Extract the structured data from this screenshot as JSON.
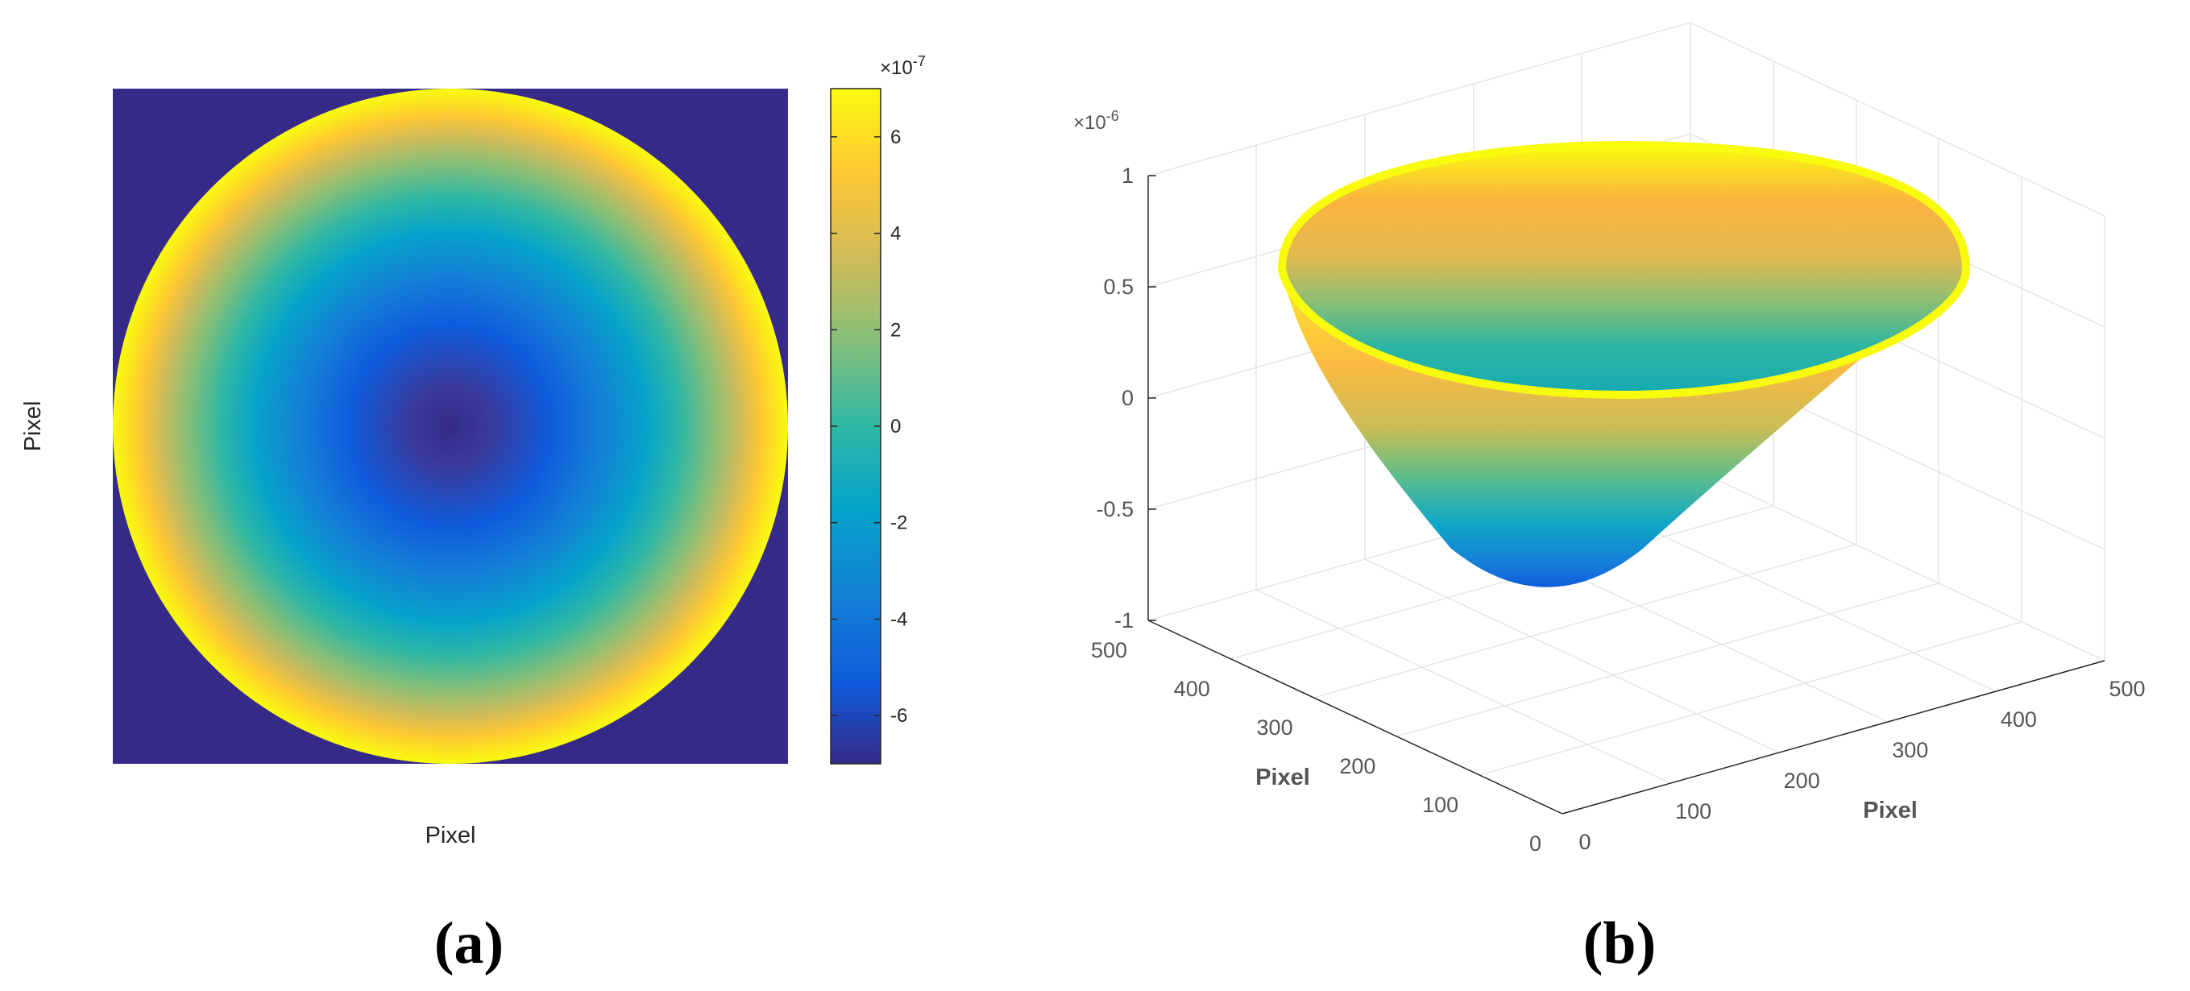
{
  "chart_data": [
    {
      "panel": "(a)",
      "type": "heatmap",
      "title": "",
      "xlabel": "Pixel",
      "ylabel": "Pixel",
      "description_values": {
        "shape": "circular aperture, radially symmetric paraboloid height map",
        "center_value": -7e-07,
        "rim_value": 7e-07,
        "outside_value": -7e-07
      },
      "colorbar": {
        "exponent_label": "×10",
        "exponent_power": "-7",
        "range": [
          -7,
          7
        ],
        "ticks": [
          "6",
          "4",
          "2",
          "0",
          "-2",
          "-4",
          "-6"
        ],
        "tick_values": [
          6,
          4,
          2,
          0,
          -2,
          -4,
          -6
        ]
      }
    },
    {
      "panel": "(b)",
      "type": "surface3d",
      "title": "",
      "xlabel": "Pixel",
      "ylabel": "Pixel",
      "zlabel": "",
      "z_exponent_label": "×10",
      "z_exponent_power": "-6",
      "zlim": [
        -1,
        1
      ],
      "z_ticks": [
        "1",
        "0.5",
        "0",
        "-0.5",
        "-1"
      ],
      "z_tick_values": [
        1,
        0.5,
        0,
        -0.5,
        -1
      ],
      "y_ticks": [
        "500",
        "400",
        "300",
        "200",
        "100",
        "0"
      ],
      "y_tick_values": [
        500,
        400,
        300,
        200,
        100,
        0
      ],
      "x_ticks": [
        "0",
        "100",
        "200",
        "300",
        "400",
        "500"
      ],
      "x_tick_values": [
        0,
        100,
        200,
        300,
        400,
        500
      ],
      "surface": "paraboloid bowl, minimum about -0.9e-6 at center, rim about 0.7e-6"
    }
  ],
  "colors": {
    "parula": [
      "#352a87",
      "#0f5cdd",
      "#1481d6",
      "#06a4ca",
      "#2eb7a4",
      "#87bf77",
      "#d1bb59",
      "#fec832",
      "#f9fb0e"
    ],
    "outside": "#352a87"
  },
  "panel_labels": {
    "a": "(a)",
    "b": "(b)"
  }
}
